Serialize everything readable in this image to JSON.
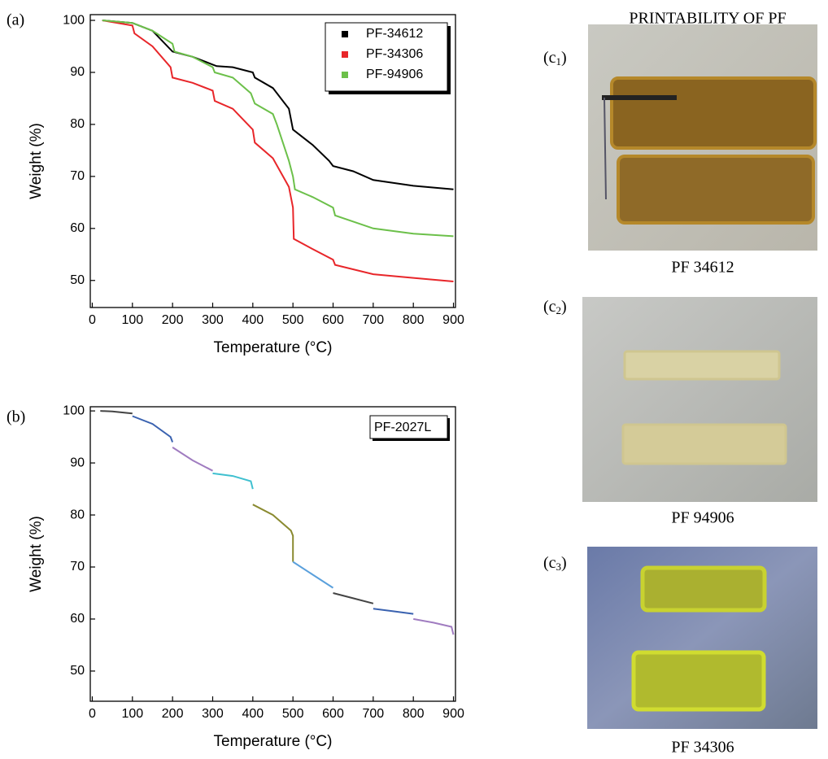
{
  "chart_data": [
    {
      "type": "line",
      "panel": "(a)",
      "xlabel": "Temperature (°C)",
      "ylabel": "Weight (%)",
      "xlim": [
        -5,
        905
      ],
      "ylim": [
        44.8,
        101.1
      ],
      "xticks": [
        0,
        100,
        200,
        300,
        400,
        500,
        600,
        700,
        800,
        900
      ],
      "yticks": [
        50,
        60,
        70,
        80,
        90,
        100
      ],
      "legend_position": "upper right",
      "series": [
        {
          "name": "PF-34612",
          "color": "#000000",
          "x": [
            25,
            100,
            150,
            200,
            250,
            300,
            310,
            350,
            400,
            405,
            450,
            490,
            500,
            550,
            590,
            600,
            650,
            700,
            800,
            900
          ],
          "values": [
            100,
            99.5,
            98,
            94,
            93,
            91.5,
            91.2,
            91,
            90,
            89,
            87,
            83,
            79,
            76,
            73,
            72,
            71,
            69.3,
            68.2,
            67.5
          ]
        },
        {
          "name": "PF-34306",
          "color": "#e8262a",
          "x": [
            25,
            100,
            105,
            150,
            195,
            200,
            250,
            300,
            305,
            350,
            400,
            405,
            450,
            490,
            500,
            502,
            550,
            600,
            605,
            700,
            800,
            900
          ],
          "values": [
            100,
            99,
            97.5,
            95,
            91,
            89,
            88,
            86.5,
            84.5,
            83,
            79,
            76.5,
            73.5,
            68,
            64,
            58,
            56,
            54,
            53,
            51.2,
            50.5,
            49.8
          ]
        },
        {
          "name": "PF-94906",
          "color": "#6cc04a",
          "x": [
            25,
            100,
            150,
            200,
            205,
            250,
            300,
            305,
            350,
            395,
            405,
            450,
            460,
            490,
            500,
            505,
            550,
            600,
            605,
            700,
            800,
            900
          ],
          "values": [
            100,
            99.5,
            98,
            95.5,
            94,
            93,
            91,
            90,
            89,
            86,
            84,
            82,
            80,
            73,
            70,
            67.5,
            66,
            64,
            62.5,
            60,
            59,
            58.5
          ]
        }
      ]
    },
    {
      "type": "line",
      "panel": "(b)",
      "xlabel": "Temperature (°C)",
      "ylabel": "Weight (%)",
      "xlim": [
        -5,
        905
      ],
      "ylim": [
        44.2,
        100.8
      ],
      "xticks": [
        0,
        100,
        200,
        300,
        400,
        500,
        600,
        700,
        800,
        900
      ],
      "yticks": [
        50,
        60,
        70,
        80,
        90,
        100
      ],
      "legend": "PF-2027L",
      "legend_position": "upper right",
      "series": [
        {
          "color": "#444444",
          "x": [
            20,
            50,
            100
          ],
          "values": [
            100,
            99.9,
            99.5
          ]
        },
        {
          "color": "#3a62b0",
          "x": [
            100,
            150,
            195,
            200
          ],
          "values": [
            99,
            97.5,
            95,
            94
          ]
        },
        {
          "color": "#a07cc0",
          "x": [
            200,
            250,
            300
          ],
          "values": [
            93,
            90.5,
            88.5
          ]
        },
        {
          "color": "#3fc0d0",
          "x": [
            300,
            350,
            395,
            400
          ],
          "values": [
            88,
            87.5,
            86.5,
            85
          ]
        },
        {
          "color": "#8a8a30",
          "x": [
            400,
            450,
            495,
            500,
            500
          ],
          "values": [
            82,
            80,
            77,
            76,
            71
          ]
        },
        {
          "color": "#5aa0dc",
          "x": [
            500,
            550,
            600
          ],
          "values": [
            71,
            68.5,
            66
          ]
        },
        {
          "color": "#444444",
          "x": [
            600,
            650,
            700
          ],
          "values": [
            65,
            64,
            63
          ]
        },
        {
          "color": "#3a62b0",
          "x": [
            700,
            750,
            800
          ],
          "values": [
            62,
            61.5,
            61
          ]
        },
        {
          "color": "#a07cc0",
          "x": [
            800,
            850,
            895,
            900
          ],
          "values": [
            60,
            59.3,
            58.5,
            57
          ]
        }
      ]
    }
  ],
  "printability": {
    "title": "PRINTABILITY OF PF",
    "photos": [
      {
        "label": "(c",
        "sub": "1",
        "end": ")",
        "caption": "PF 34612"
      },
      {
        "label": "(c",
        "sub": "2",
        "end": ")",
        "caption": "PF 94906"
      },
      {
        "label": "(c",
        "sub": "3",
        "end": ")",
        "caption": "PF 34306"
      }
    ]
  }
}
